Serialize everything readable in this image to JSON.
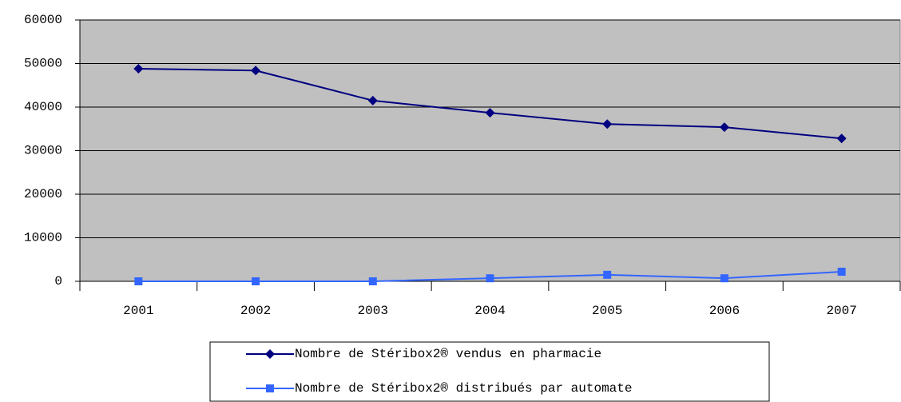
{
  "chart_data": {
    "type": "line",
    "categories": [
      "2001",
      "2002",
      "2003",
      "2004",
      "2005",
      "2006",
      "2007"
    ],
    "series": [
      {
        "name": "Nombre de Stéribox2® vendus en pharmacie",
        "color": "#000080",
        "marker": "diamond",
        "values": [
          48800,
          48400,
          41500,
          38700,
          36100,
          35400,
          32800
        ]
      },
      {
        "name": "Nombre de Stéribox2® distribués par automate",
        "color": "#3366ff",
        "marker": "square",
        "values": [
          0,
          0,
          0,
          700,
          1500,
          700,
          2200
        ]
      }
    ],
    "ylim": [
      0,
      60000
    ],
    "yticks": [
      0,
      10000,
      20000,
      30000,
      40000,
      50000,
      60000
    ],
    "grid": true,
    "plot_background": "#c0c0c0",
    "legend_position": "bottom"
  }
}
